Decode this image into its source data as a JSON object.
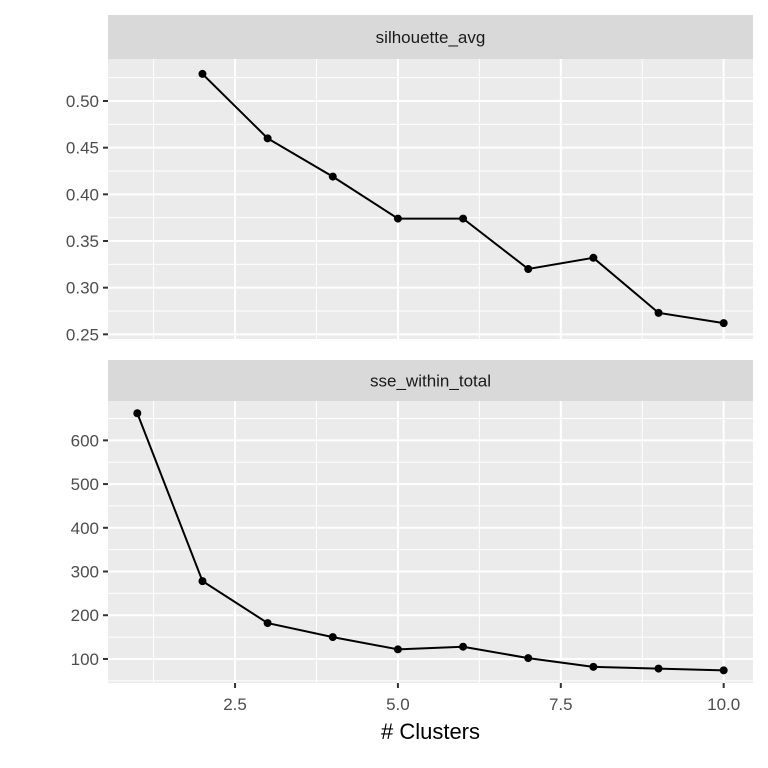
{
  "chart_data": [
    {
      "type": "line",
      "title": "silhouette_avg",
      "x": [
        2,
        3,
        4,
        5,
        6,
        7,
        8,
        9,
        10
      ],
      "values": [
        0.529,
        0.46,
        0.419,
        0.374,
        0.374,
        0.32,
        0.332,
        0.273,
        0.262
      ],
      "xlabel": "# Clusters",
      "ylabel": "",
      "yticks": [
        "0.25",
        "0.30",
        "0.35",
        "0.40",
        "0.45",
        "0.50"
      ],
      "ylim": [
        0.245,
        0.545
      ],
      "grid": true
    },
    {
      "type": "line",
      "title": "sse_within_total",
      "x": [
        1,
        2,
        3,
        4,
        5,
        6,
        7,
        8,
        9,
        10
      ],
      "values": [
        662,
        278,
        182,
        150,
        122,
        128,
        102,
        82,
        78,
        74
      ],
      "xlabel": "# Clusters",
      "ylabel": "",
      "yticks": [
        "100",
        "200",
        "300",
        "400",
        "500",
        "600"
      ],
      "ylim": [
        45,
        690
      ],
      "grid": true
    }
  ],
  "axis": {
    "xticks": [
      "2.5",
      "5.0",
      "7.5",
      "10.0"
    ],
    "xlabel": "# Clusters",
    "xlim": [
      0.55,
      10.45
    ]
  },
  "colors": {
    "panel_bg": "#EBEBEB",
    "strip_bg": "#D9D9D9",
    "grid": "#FFFFFF",
    "line": "#000000",
    "text": "#4D4D4D"
  }
}
